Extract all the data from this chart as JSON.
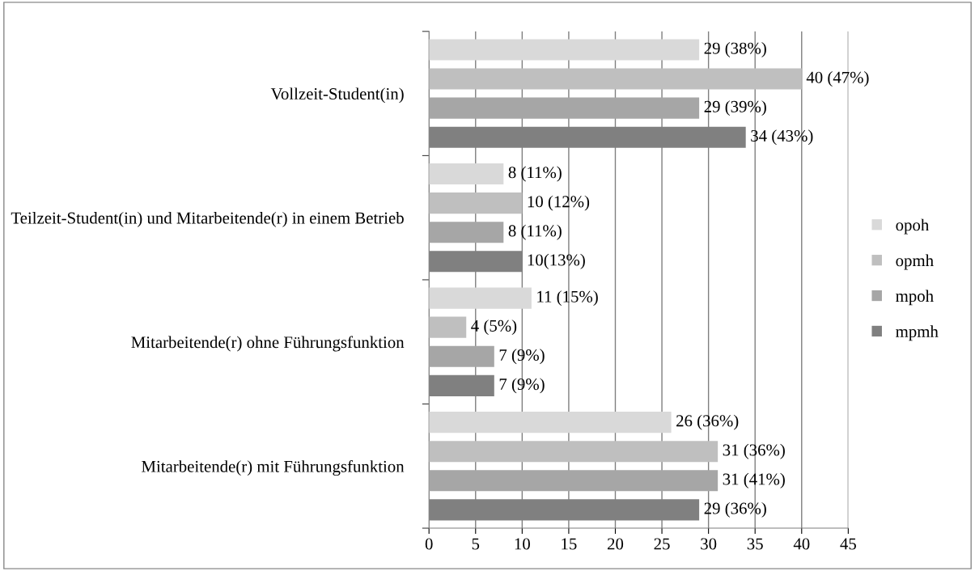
{
  "chart_data": {
    "type": "bar",
    "orientation": "horizontal",
    "categories": [
      "Vollzeit-Student(in)",
      "Teilzeit-Student(in) und Mitarbeitende(r) in einem Betrieb",
      "Mitarbeitende(r) ohne Führungsfunktion",
      "Mitarbeitende(r) mit Führungsfunktion"
    ],
    "series": [
      {
        "name": "opoh",
        "color": "#d9d9d9",
        "values": [
          29,
          8,
          11,
          26
        ],
        "value_labels": [
          "29 (38%)",
          "8 (11%)",
          "11 (15%)",
          "26 (36%)"
        ]
      },
      {
        "name": "opmh",
        "color": "#bfbfbf",
        "values": [
          40,
          10,
          4,
          31
        ],
        "value_labels": [
          "40 (47%)",
          "10 (12%)",
          "4 (5%)",
          "31 (36%)"
        ]
      },
      {
        "name": "mpoh",
        "color": "#a6a6a6",
        "values": [
          29,
          8,
          7,
          31
        ],
        "value_labels": [
          "29 (39%)",
          "8 (11%)",
          "7 (9%)",
          "31 (41%)"
        ]
      },
      {
        "name": "mpmh",
        "color": "#808080",
        "values": [
          34,
          10,
          7,
          29
        ],
        "value_labels": [
          "34 (43%)",
          "10(13%)",
          "7 (9%)",
          "29 (36%)"
        ]
      }
    ],
    "xlim": [
      0,
      45
    ],
    "xticks": [
      0,
      5,
      10,
      15,
      20,
      25,
      30,
      35,
      40,
      45
    ],
    "grid": "x",
    "legend": "right"
  }
}
